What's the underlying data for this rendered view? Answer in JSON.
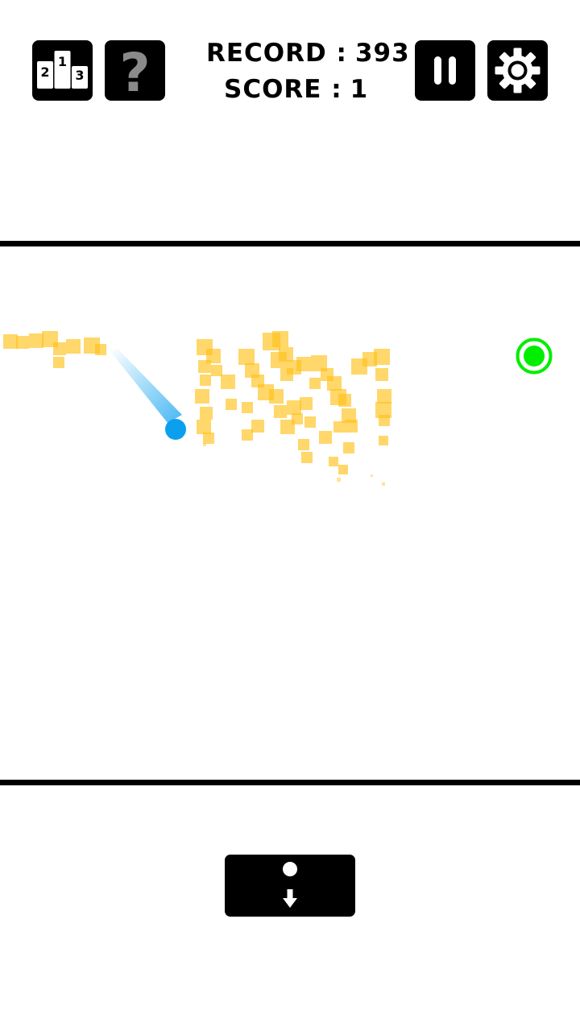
{
  "header": {
    "record_label": "RECORD :",
    "record_value": "393",
    "score_label": "SCORE :",
    "score_value": "1"
  },
  "leaderboard_icon": {
    "ranks": [
      "2",
      "1",
      "3"
    ]
  },
  "help_icon": {
    "glyph": "?"
  },
  "colors": {
    "ball": "#0aa0ee",
    "target": "#00ee00",
    "particles": "#ffc21a",
    "walls": "#000000"
  }
}
